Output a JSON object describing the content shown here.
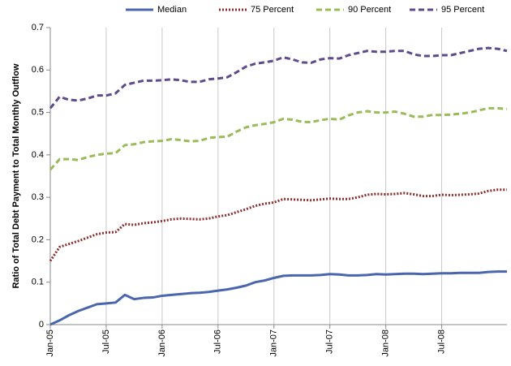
{
  "chart_data": {
    "type": "line",
    "y_label": "Ratio of Total Debt Payment to Total Monthly Outflow",
    "categories": [
      "Jan-05",
      null,
      null,
      null,
      null,
      null,
      "Jul-05",
      null,
      null,
      null,
      null,
      null,
      "Jan-06",
      null,
      null,
      null,
      null,
      null,
      "Jul-06",
      null,
      null,
      null,
      null,
      null,
      "Jan-07",
      null,
      null,
      null,
      null,
      null,
      "Jul-07",
      null,
      null,
      null,
      null,
      null,
      "Jan-08",
      null,
      null,
      null,
      null,
      null,
      "Jul-08",
      null,
      null,
      null,
      null,
      null,
      null,
      null
    ],
    "series": [
      {
        "name": "Median",
        "color": "#4a66ac",
        "dash": "solid",
        "values": [
          0,
          0.01,
          0.022,
          0.032,
          0.04,
          0.048,
          0.05,
          0.052,
          0.07,
          0.06,
          0.063,
          0.064,
          0.068,
          0.07,
          0.072,
          0.074,
          0.075,
          0.077,
          0.08,
          0.083,
          0.087,
          0.092,
          0.1,
          0.104,
          0.11,
          0.115,
          0.116,
          0.116,
          0.116,
          0.117,
          0.119,
          0.118,
          0.116,
          0.116,
          0.117,
          0.119,
          0.118,
          0.119,
          0.12,
          0.12,
          0.119,
          0.12,
          0.121,
          0.121,
          0.122,
          0.122,
          0.122,
          0.124,
          0.125,
          0.125
        ]
      },
      {
        "name": "75 Percent",
        "color": "#8b2e2e",
        "dash": "dotted",
        "values": [
          0.15,
          0.183,
          0.19,
          0.197,
          0.205,
          0.213,
          0.217,
          0.218,
          0.237,
          0.235,
          0.239,
          0.241,
          0.244,
          0.248,
          0.25,
          0.249,
          0.248,
          0.25,
          0.255,
          0.258,
          0.265,
          0.272,
          0.28,
          0.285,
          0.288,
          0.296,
          0.295,
          0.294,
          0.293,
          0.295,
          0.297,
          0.296,
          0.296,
          0.3,
          0.306,
          0.308,
          0.307,
          0.308,
          0.31,
          0.307,
          0.303,
          0.303,
          0.306,
          0.305,
          0.306,
          0.307,
          0.309,
          0.315,
          0.318,
          0.318
        ]
      },
      {
        "name": "90 Percent",
        "color": "#9bbb59",
        "dash": "dashed",
        "values": [
          0.365,
          0.39,
          0.39,
          0.388,
          0.395,
          0.4,
          0.403,
          0.404,
          0.423,
          0.425,
          0.43,
          0.432,
          0.433,
          0.437,
          0.435,
          0.432,
          0.433,
          0.44,
          0.442,
          0.443,
          0.455,
          0.465,
          0.47,
          0.473,
          0.477,
          0.485,
          0.483,
          0.478,
          0.477,
          0.482,
          0.485,
          0.483,
          0.493,
          0.5,
          0.503,
          0.5,
          0.5,
          0.502,
          0.497,
          0.49,
          0.49,
          0.494,
          0.494,
          0.495,
          0.497,
          0.5,
          0.505,
          0.51,
          0.51,
          0.508
        ]
      },
      {
        "name": "95 Percent",
        "color": "#5f4b8b",
        "dash": "dashed",
        "values": [
          0.51,
          0.537,
          0.53,
          0.528,
          0.533,
          0.54,
          0.54,
          0.545,
          0.565,
          0.57,
          0.575,
          0.575,
          0.576,
          0.578,
          0.576,
          0.572,
          0.572,
          0.578,
          0.58,
          0.583,
          0.595,
          0.608,
          0.615,
          0.618,
          0.622,
          0.63,
          0.625,
          0.618,
          0.617,
          0.625,
          0.628,
          0.627,
          0.635,
          0.64,
          0.645,
          0.643,
          0.643,
          0.645,
          0.645,
          0.637,
          0.633,
          0.633,
          0.635,
          0.635,
          0.64,
          0.645,
          0.65,
          0.652,
          0.65,
          0.645
        ]
      }
    ],
    "ylim": [
      0,
      0.7
    ],
    "yticks": [
      0,
      0.1,
      0.2,
      0.3,
      0.4,
      0.5,
      0.6,
      0.7
    ],
    "grid": "x",
    "legend": "top"
  }
}
